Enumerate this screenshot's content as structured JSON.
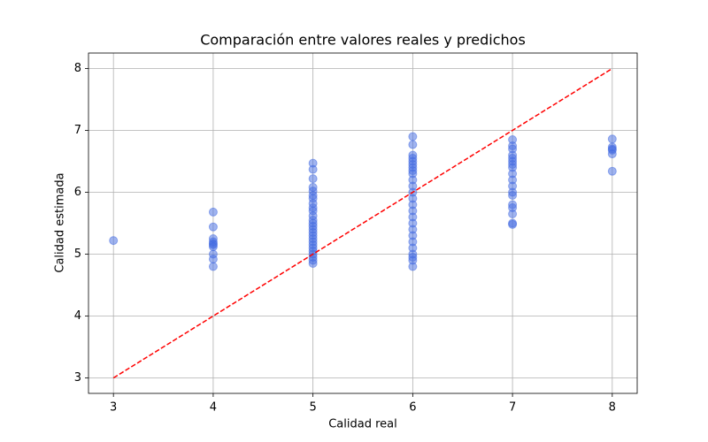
{
  "chart_data": {
    "type": "scatter",
    "title": "Comparación entre valores reales y predichos",
    "xlabel": "Calidad real",
    "ylabel": "Calidad estimada",
    "x": [
      3,
      4,
      4,
      4,
      4,
      4,
      4,
      4,
      4,
      4,
      4,
      5,
      5,
      5,
      5,
      5,
      5,
      5,
      5,
      5,
      5,
      5,
      5,
      5,
      5,
      5,
      5,
      5,
      5,
      5,
      5,
      5,
      5,
      5,
      5,
      5,
      5,
      6,
      6,
      6,
      6,
      6,
      6,
      6,
      6,
      6,
      6,
      6,
      6,
      6,
      6,
      6,
      6,
      6,
      6,
      6,
      6,
      6,
      6,
      6,
      6,
      6,
      7,
      7,
      7,
      7,
      7,
      7,
      7,
      7,
      7,
      7,
      7,
      7,
      7,
      7,
      7,
      7,
      7,
      7,
      8,
      8,
      8,
      8,
      8,
      8
    ],
    "y": [
      5.22,
      5.68,
      5.44,
      5.25,
      5.2,
      5.17,
      5.15,
      5.12,
      5.0,
      4.92,
      4.8,
      6.47,
      6.37,
      6.22,
      6.08,
      6.02,
      5.95,
      5.9,
      5.82,
      5.75,
      5.7,
      5.62,
      5.55,
      5.5,
      5.45,
      5.4,
      5.35,
      5.3,
      5.25,
      5.2,
      5.15,
      5.1,
      5.05,
      5.0,
      4.95,
      4.9,
      4.85,
      6.9,
      6.77,
      6.6,
      6.55,
      6.5,
      6.45,
      6.4,
      6.35,
      6.3,
      6.2,
      6.1,
      6.0,
      5.9,
      5.8,
      5.7,
      5.6,
      5.5,
      5.4,
      5.3,
      5.2,
      5.1,
      5.0,
      4.95,
      4.9,
      4.8,
      6.85,
      6.75,
      6.7,
      6.6,
      6.55,
      6.5,
      6.45,
      6.4,
      6.3,
      6.2,
      6.1,
      6.0,
      5.95,
      5.8,
      5.75,
      5.65,
      5.5,
      5.48,
      6.86,
      6.73,
      6.7,
      6.68,
      6.62,
      6.34
    ],
    "color": "#4169e1",
    "alpha": 0.5,
    "reference_line": {
      "x": [
        3,
        8
      ],
      "y": [
        3,
        8
      ],
      "color": "#ff0000",
      "style": "dashed"
    },
    "xlim": [
      2.75,
      8.25
    ],
    "ylim": [
      2.75,
      8.25
    ],
    "xticks": [
      3,
      4,
      5,
      6,
      7,
      8
    ],
    "yticks": [
      3,
      4,
      5,
      6,
      7,
      8
    ],
    "grid": true
  }
}
